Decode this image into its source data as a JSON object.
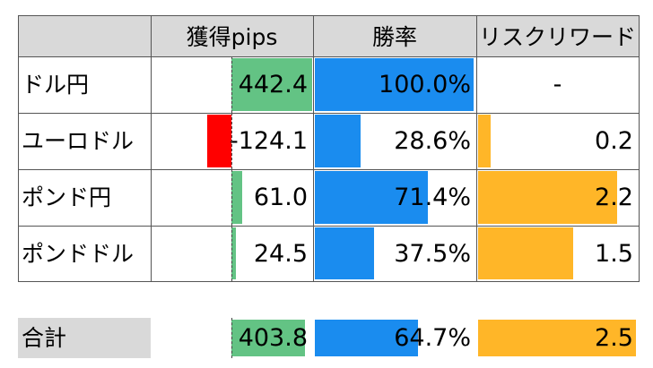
{
  "headers": [
    "",
    "獲得pips",
    "勝率",
    "リスクリワード"
  ],
  "rows": [
    {
      "name": "ドル円",
      "pips": "442.4",
      "pips_value": 442.4,
      "win": "100.0%",
      "win_value": 100.0,
      "rr": "-",
      "rr_value": 0
    },
    {
      "name": "ユーロドル",
      "pips": "-124.1",
      "pips_value": -124.1,
      "win": "28.6%",
      "win_value": 28.6,
      "rr": "0.2",
      "rr_value": 0.2
    },
    {
      "name": "ポンド円",
      "pips": "61.0",
      "pips_value": 61.0,
      "win": "71.4%",
      "win_value": 71.4,
      "rr": "2.2",
      "rr_value": 2.2
    },
    {
      "name": "ポンドドル",
      "pips": "24.5",
      "pips_value": 24.5,
      "win": "37.5%",
      "win_value": 37.5,
      "rr": "1.5",
      "rr_value": 1.5
    }
  ],
  "total": {
    "name": "合計",
    "pips": "403.8",
    "pips_value": 403.8,
    "win": "64.7%",
    "win_value": 64.7,
    "rr": "2.5",
    "rr_value": 2.5
  },
  "colors": {
    "pips_bar": "#63c384",
    "negative_bar": "#ff0000",
    "win_bar": "#1a8cef",
    "rr_bar": "#ffb628",
    "header_bg": "#d9d9d9"
  }
}
